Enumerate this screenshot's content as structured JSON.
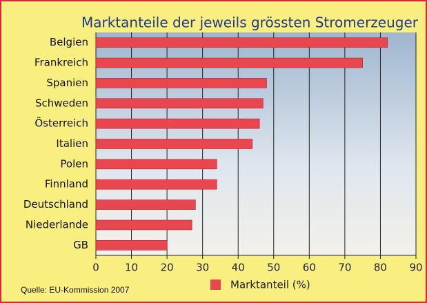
{
  "chart_data": {
    "type": "bar",
    "orientation": "horizontal",
    "title": "Marktanteile der jeweils grössten Stromerzeuger",
    "categories": [
      "Belgien",
      "Frankreich",
      "Spanien",
      "Schweden",
      "Österreich",
      "Italien",
      "Polen",
      "Finnland",
      "Deutschland",
      "Niederlande",
      "GB"
    ],
    "series": [
      {
        "name": "Marktanteil (%)",
        "color": "#e8474f",
        "values": [
          82,
          75,
          48,
          47,
          46,
          44,
          34,
          34,
          28,
          27,
          20
        ]
      }
    ],
    "xlim": [
      0,
      90
    ],
    "xticks": [
      0,
      10,
      20,
      30,
      40,
      50,
      60,
      70,
      80,
      90
    ],
    "grid": true,
    "source": "Quelle: EU-Kommission 2007"
  }
}
